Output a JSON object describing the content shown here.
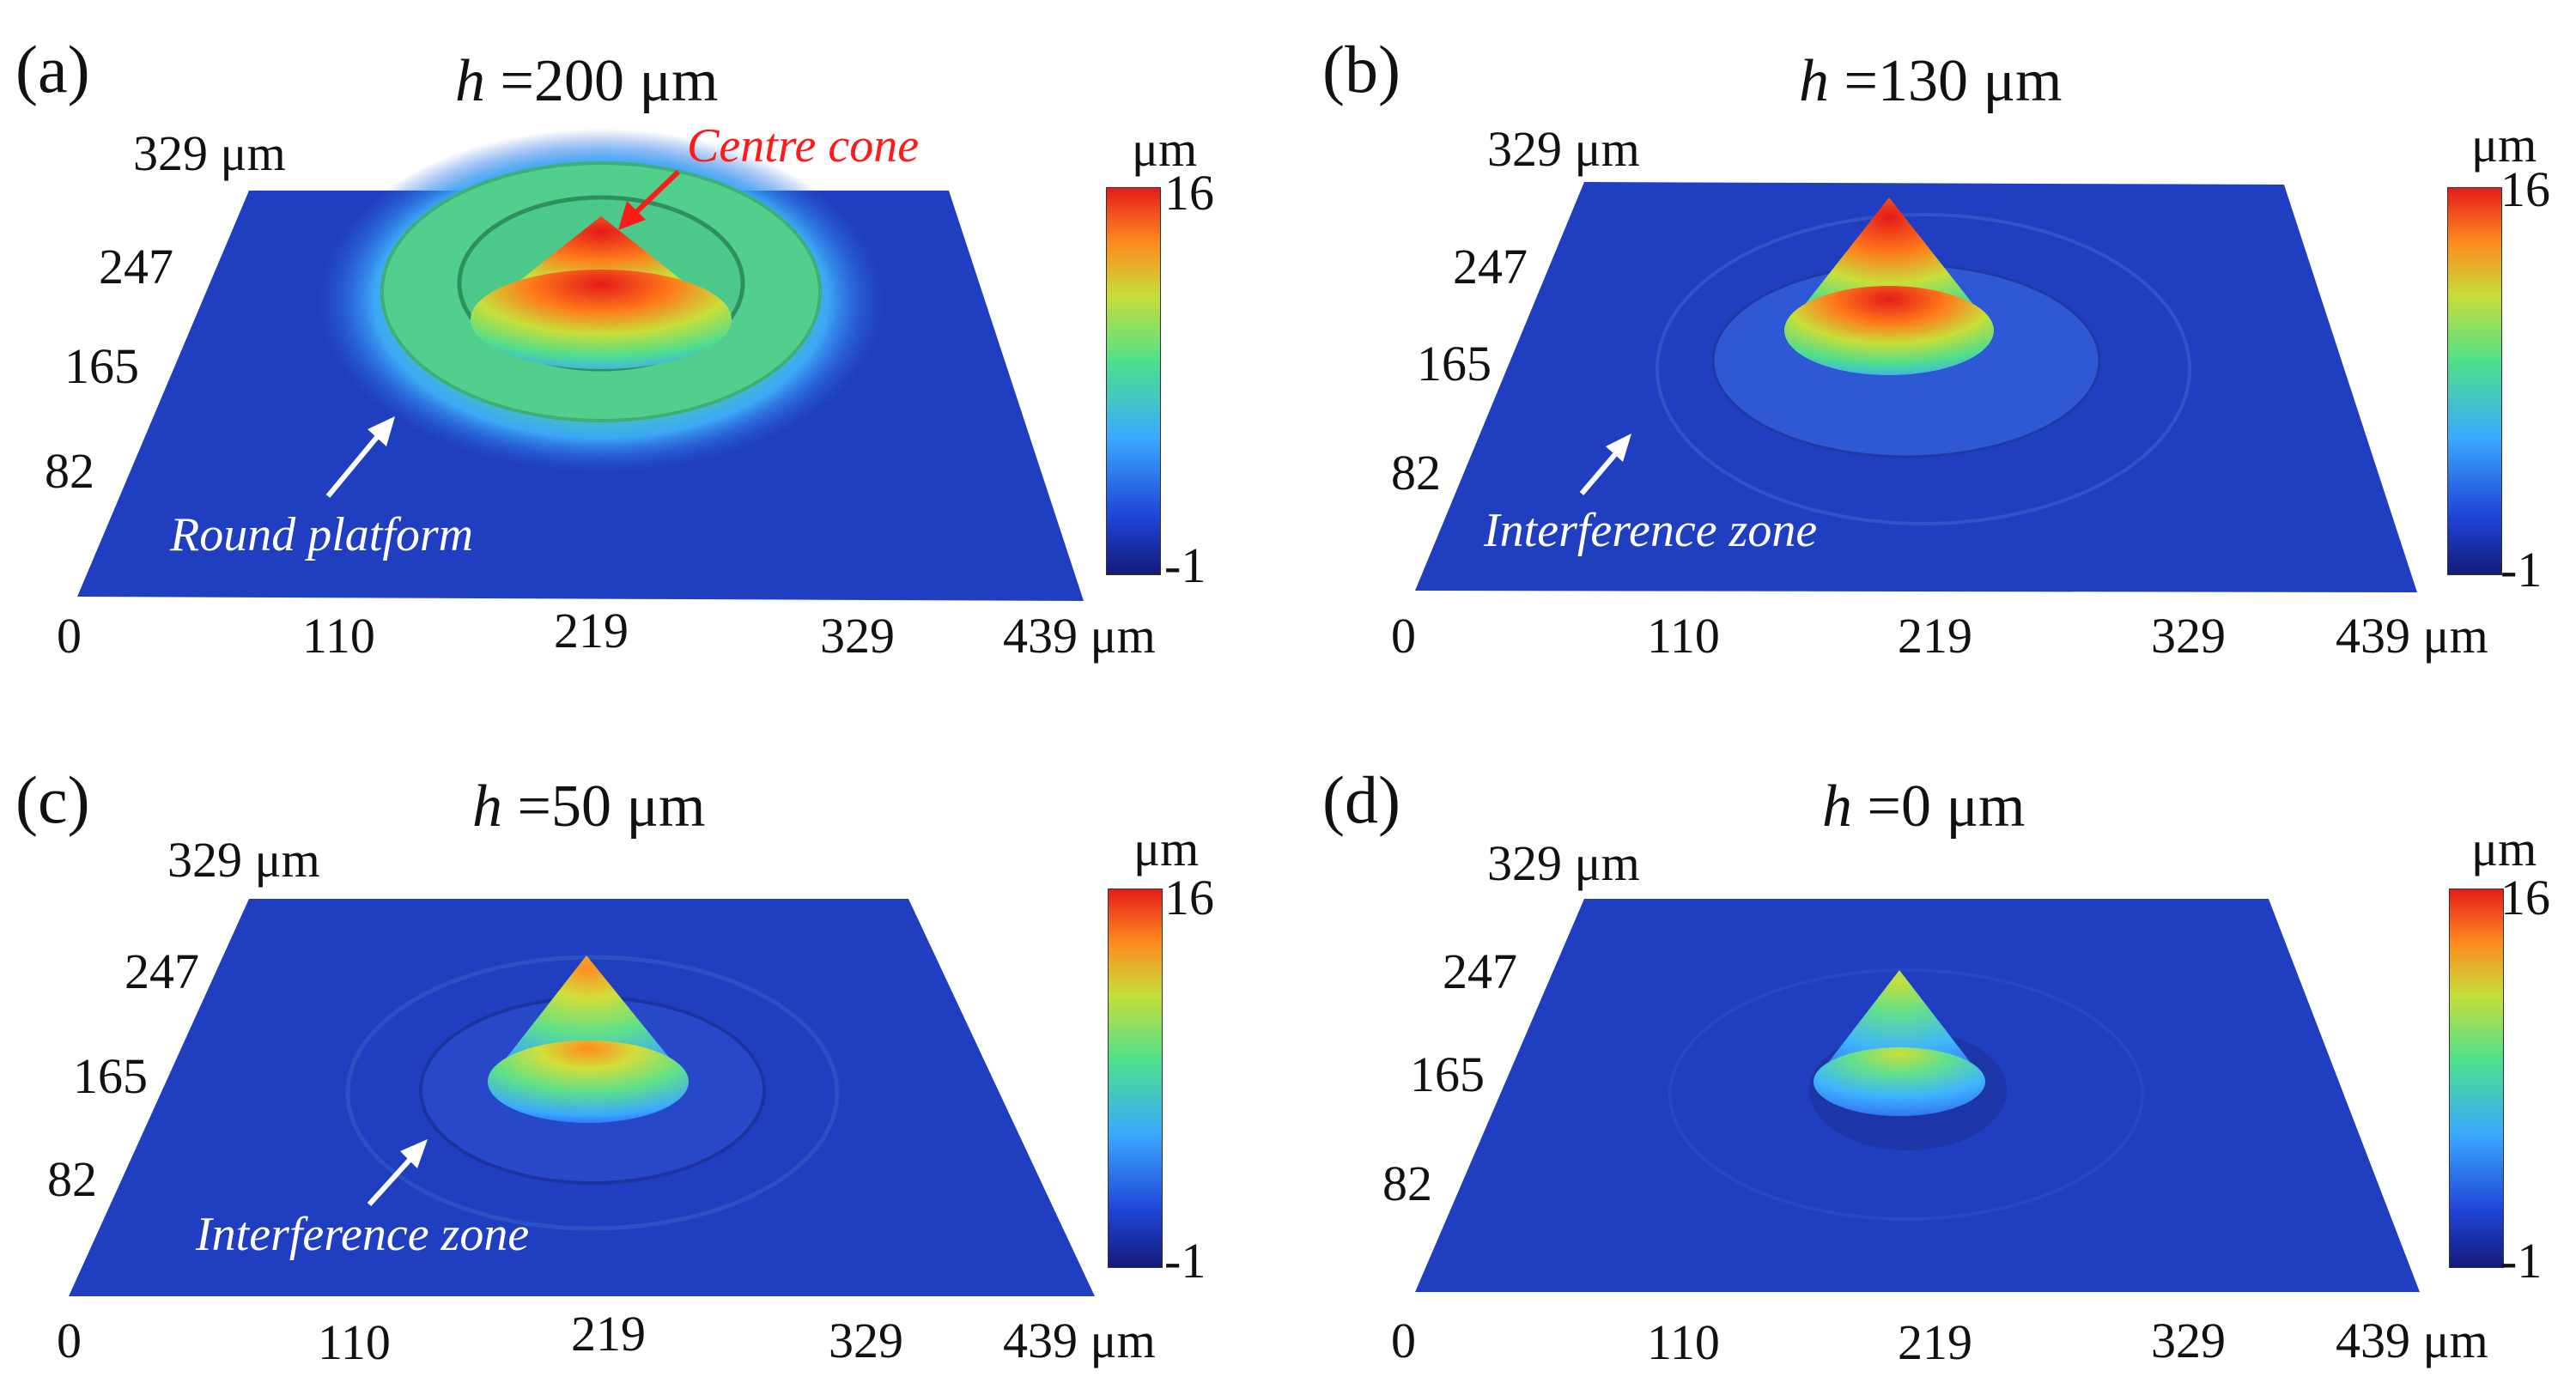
{
  "colors": {
    "surface_base": "#1f3fbf",
    "colormap": [
      "#1a1a8c",
      "#2255e8",
      "#35b8ff",
      "#49e28a",
      "#c8e03a",
      "#ff7a1a",
      "#e82020"
    ]
  },
  "panels": [
    {
      "label": "(a)",
      "title_var": "h",
      "title_value": " =200 μm",
      "y_top_label": "329 μm",
      "y_ticks": [
        "247",
        "165",
        "82"
      ],
      "x_ticks": [
        "0",
        "110",
        "219",
        "329"
      ],
      "x_last": "439 μm",
      "colorbar": {
        "unit": "μm",
        "max": "16",
        "min": "-1"
      },
      "annotations": [
        {
          "text": "Centre cone",
          "color": "red"
        },
        {
          "text": "Round platform",
          "color": "white"
        }
      ]
    },
    {
      "label": "(b)",
      "title_var": "h",
      "title_value": " =130 μm",
      "y_top_label": "329 μm",
      "y_ticks": [
        "247",
        "165",
        "82"
      ],
      "x_ticks": [
        "0",
        "110",
        "219",
        "329"
      ],
      "x_last": "439 μm",
      "colorbar": {
        "unit": "μm",
        "max": "16",
        "min": "-1"
      },
      "annotations": [
        {
          "text": "Interference zone",
          "color": "white"
        }
      ]
    },
    {
      "label": "(c)",
      "title_var": "h",
      "title_value": " =50 μm",
      "y_top_label": "329 μm",
      "y_ticks": [
        "247",
        "165",
        "82"
      ],
      "x_ticks": [
        "0",
        "110",
        "219",
        "329"
      ],
      "x_last": "439 μm",
      "colorbar": {
        "unit": "μm",
        "max": "16",
        "min": "-1"
      },
      "annotations": [
        {
          "text": "Interference zone",
          "color": "white"
        }
      ]
    },
    {
      "label": "(d)",
      "title_var": "h",
      "title_value": " =0 μm",
      "y_top_label": "329 μm",
      "y_ticks": [
        "247",
        "165",
        "82"
      ],
      "x_ticks": [
        "0",
        "110",
        "219",
        "329"
      ],
      "x_last": "439 μm",
      "colorbar": {
        "unit": "μm",
        "max": "16",
        "min": "-1"
      },
      "annotations": []
    }
  ]
}
